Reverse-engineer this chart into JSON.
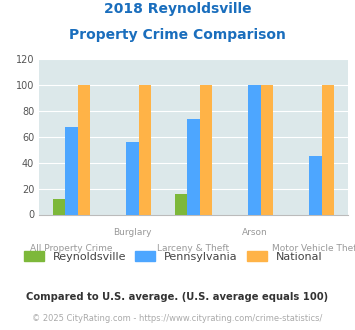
{
  "title_line1": "2018 Reynoldsville",
  "title_line2": "Property Crime Comparison",
  "top_labels": [
    "",
    "Burglary",
    "",
    "Arson",
    ""
  ],
  "bot_labels": [
    "All Property Crime",
    "",
    "Larceny & Theft",
    "",
    "Motor Vehicle Theft"
  ],
  "groups": [
    {
      "name": "All Property Crime",
      "reynoldsville": 12,
      "pennsylvania": 68,
      "national": 100
    },
    {
      "name": "Burglary",
      "reynoldsville": 0,
      "pennsylvania": 56,
      "national": 100
    },
    {
      "name": "Larceny & Theft",
      "reynoldsville": 16,
      "pennsylvania": 74,
      "national": 100
    },
    {
      "name": "Arson",
      "reynoldsville": 0,
      "pennsylvania": 100,
      "national": 100
    },
    {
      "name": "Motor Vehicle Theft",
      "reynoldsville": 0,
      "pennsylvania": 45,
      "national": 100
    }
  ],
  "colors": {
    "reynoldsville": "#7db83a",
    "pennsylvania": "#4da6ff",
    "national": "#ffb347"
  },
  "ylim": [
    0,
    120
  ],
  "yticks": [
    0,
    20,
    40,
    60,
    80,
    100,
    120
  ],
  "bg_color": "#dce8ea",
  "grid_color": "#ffffff",
  "title_color": "#1a6ebd",
  "top_label_color": "#999999",
  "bot_label_color": "#999999",
  "legend_label_color": "#444444",
  "footnote1": "Compared to U.S. average. (U.S. average equals 100)",
  "footnote2": "© 2025 CityRating.com - https://www.cityrating.com/crime-statistics/",
  "footnote1_color": "#333333",
  "footnote2_color": "#aaaaaa",
  "bar_width": 0.2
}
